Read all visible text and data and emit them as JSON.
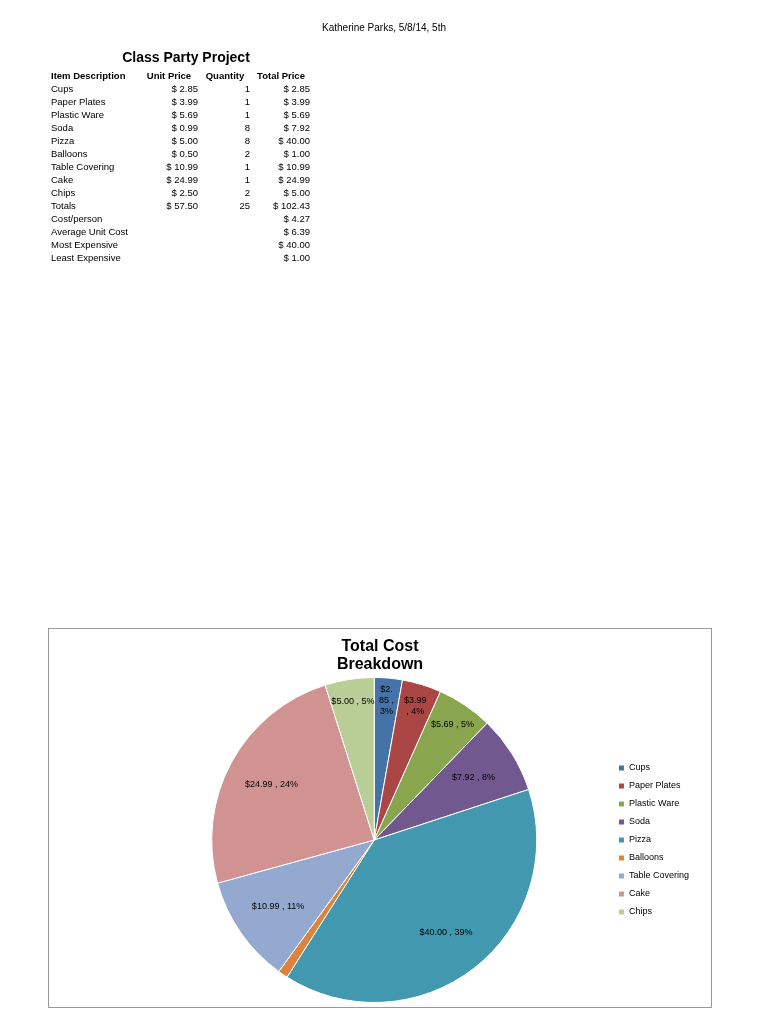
{
  "chart_data": [
    {
      "type": "other",
      "title": "Class Party Project",
      "xlabel": "Item Description",
      "annotations": [
        "Katherine Parks, 5/8/14, 5th"
      ],
      "categories": [
        "Cups",
        "Paper Plates",
        "Plastic Ware",
        "Soda",
        "Pizza",
        "Balloons",
        "Table Covering",
        "Cake",
        "Chips",
        "Totals",
        "Cost/person",
        "Average Unit Cost",
        "Most Expensive",
        "Least Expensive"
      ],
      "series": [
        {
          "name": "Unit Price",
          "values": [
            2.85,
            3.99,
            5.69,
            0.99,
            5.0,
            0.5,
            10.99,
            24.99,
            2.5,
            57.5,
            null,
            null,
            null,
            null
          ],
          "value_labels": [
            "$ 2.85",
            "$ 3.99",
            "$ 5.69",
            "$ 0.99",
            "$ 5.00",
            "$ 0.50",
            "$ 10.99",
            "$ 24.99",
            "$ 2.50",
            "$ 57.50",
            null,
            null,
            null,
            null
          ]
        },
        {
          "name": "Quantity",
          "values": [
            1,
            1,
            1,
            8,
            8,
            2,
            1,
            1,
            2,
            25,
            null,
            null,
            null,
            null
          ],
          "value_labels": [
            "1",
            "1",
            "1",
            "8",
            "8",
            "2",
            "1",
            "1",
            "2",
            "25",
            null,
            null,
            null,
            null
          ]
        },
        {
          "name": "Total Price",
          "values": [
            2.85,
            3.99,
            5.69,
            7.92,
            40.0,
            1.0,
            10.99,
            24.99,
            5.0,
            102.43,
            4.27,
            6.39,
            40.0,
            1.0
          ],
          "value_labels": [
            "$ 2.85",
            "$ 3.99",
            "$ 5.69",
            "$ 7.92",
            "$ 40.00",
            "$ 1.00",
            "$ 10.99",
            "$ 24.99",
            "$ 5.00",
            "$ 102.43",
            "$ 4.27",
            "$ 6.39",
            "$ 40.00",
            "$ 1.00"
          ]
        }
      ]
    },
    {
      "type": "pie",
      "title": "Total Cost Breakdown",
      "legend": "right",
      "categories": [
        "Cups",
        "Paper Plates",
        "Plastic Ware",
        "Soda",
        "Pizza",
        "Balloons",
        "Table Covering",
        "Cake",
        "Chips"
      ],
      "values": [
        2.85,
        3.99,
        5.69,
        7.92,
        40.0,
        1.0,
        10.99,
        24.99,
        5.0
      ],
      "colors": [
        "#4572a7",
        "#aa4643",
        "#89a54e",
        "#71588f",
        "#4198af",
        "#db843d",
        "#93a9cf",
        "#d19392",
        "#b9cd96"
      ],
      "value_labels": [
        "$2.85 , 3%",
        "$3.99 , 4%",
        "$5.69 , 5%",
        "$7.92 , 8%",
        "$40.00 , 39%",
        null,
        "$10.99 , 11%",
        "$24.99 , 24%",
        "$5.00 , 5%"
      ]
    }
  ]
}
